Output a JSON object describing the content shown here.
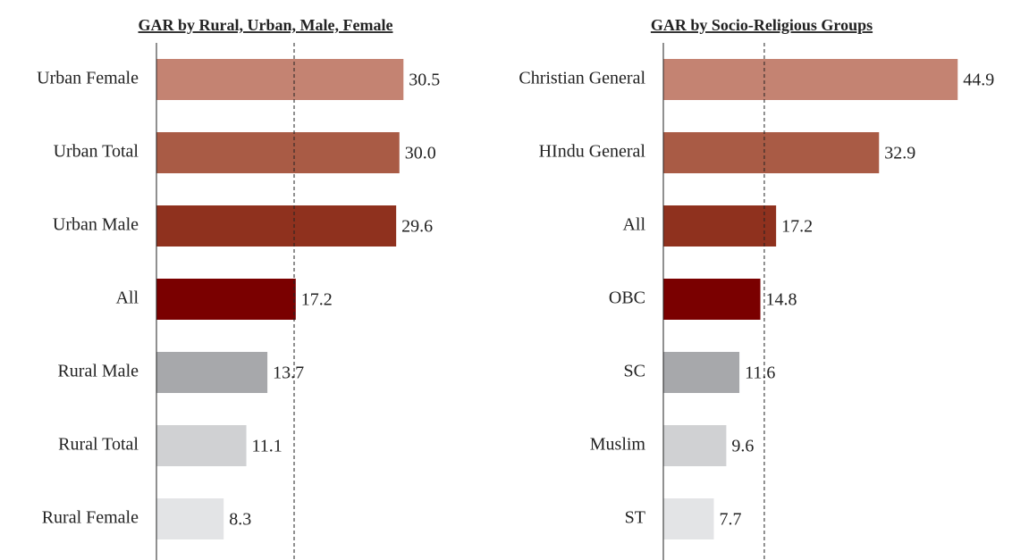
{
  "chart_data": [
    {
      "type": "barh",
      "title": "GAR by Rural, Urban, Male, Female",
      "categories": [
        "Urban Female",
        "Urban Total",
        "Urban Male",
        "All",
        "Rural Male",
        "Rural Total",
        "Rural Female"
      ],
      "series": [
        {
          "values": [
            30.5,
            30.0,
            29.6,
            17.2,
            13.7,
            11.1,
            8.3
          ],
          "value_labels": [
            "30.5",
            "30.0",
            "29.6",
            "17.2",
            "13.7",
            "11.1",
            "8.3"
          ],
          "colors": [
            "#c48372",
            "#a95b45",
            "#8f311e",
            "#7a0000",
            "#a7a8ab",
            "#d0d1d3",
            "#e3e4e6"
          ]
        }
      ],
      "xlim": [
        0,
        34
      ],
      "reference_line": 17
    },
    {
      "type": "barh",
      "title": "GAR by Socio-Religious Groups",
      "categories": [
        "Christian General",
        "HIndu General",
        "All",
        "OBC",
        "SC",
        "Muslim",
        "ST"
      ],
      "series": [
        {
          "values": [
            44.9,
            32.9,
            17.2,
            14.8,
            11.6,
            9.6,
            7.7
          ],
          "value_labels": [
            "44.9",
            "32.9",
            "17.2",
            "14.8",
            "11.6",
            "9.6",
            "7.7"
          ],
          "colors": [
            "#c48372",
            "#a95b45",
            "#8f311e",
            "#7a0000",
            "#a7a8ab",
            "#d0d1d3",
            "#e3e4e6"
          ]
        }
      ],
      "xlim": [
        0,
        48
      ],
      "reference_line": 15.4
    }
  ]
}
